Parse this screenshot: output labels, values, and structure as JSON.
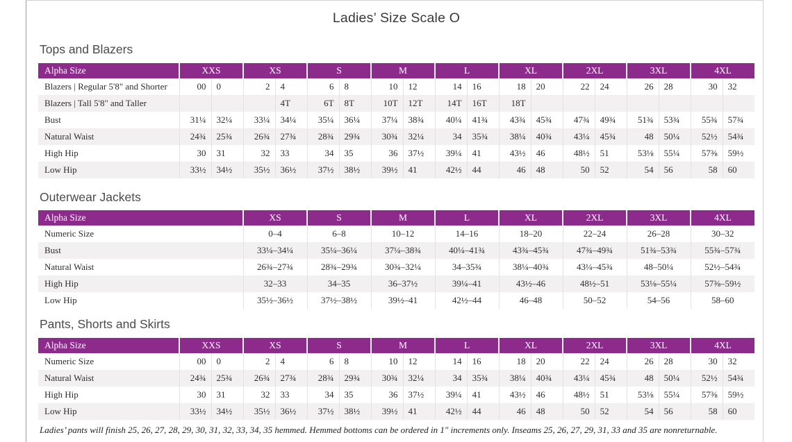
{
  "page": {
    "title": "Ladies’ Size Scale O",
    "footnote": "Ladies’ pants will finish 25, 26, 27, 28, 29, 30, 31, 32, 33, 34, 35 hemmed. Hemmed bottoms can be ordered in 1\" increments only. Inseams 25, 26, 27, 29, 31, 33 and 35 are nonreturnable."
  },
  "colors": {
    "header_bg": "#8C2B8C",
    "header_text": "#FFFFFF",
    "stripe": "#F2F0F1",
    "body_text": "#2E2C2D",
    "heading_text": "#4C4A4B"
  },
  "tables": [
    {
      "id": "tops-and-blazers",
      "section_title": "Tops and Blazers",
      "type": "double",
      "label_header": "Alpha Size",
      "size_headers": [
        "XXS",
        "XS",
        "S",
        "M",
        "L",
        "XL",
        "2XL",
        "3XL",
        "4XL"
      ],
      "rows": [
        {
          "label": "Blazers | Regular 5'8\" and Shorter",
          "values": [
            "00",
            "0",
            "2",
            "4",
            "6",
            "8",
            "10",
            "12",
            "14",
            "16",
            "18",
            "20",
            "22",
            "24",
            "26",
            "28",
            "30",
            "32"
          ]
        },
        {
          "label": "Blazers | Tall 5'8\" and Taller",
          "values": [
            "",
            "",
            "",
            "4T",
            "6T",
            "8T",
            "10T",
            "12T",
            "14T",
            "16T",
            "18T",
            "",
            "",
            "",
            "",
            "",
            "",
            ""
          ]
        },
        {
          "label": "Bust",
          "values": [
            "31¼",
            "32¼",
            "33¼",
            "34¼",
            "35¼",
            "36¼",
            "37¼",
            "38¾",
            "40¼",
            "41¾",
            "43¾",
            "45¾",
            "47¾",
            "49¾",
            "51¾",
            "53¾",
            "55¾",
            "57¾"
          ]
        },
        {
          "label": "Natural Waist",
          "values": [
            "24¾",
            "25¾",
            "26¾",
            "27¾",
            "28¾",
            "29¾",
            "30¾",
            "32¼",
            "34",
            "35¾",
            "38¼",
            "40¾",
            "43¼",
            "45¾",
            "48",
            "50¼",
            "52½",
            "54¾"
          ]
        },
        {
          "label": "High Hip",
          "values": [
            "30",
            "31",
            "32",
            "33",
            "34",
            "35",
            "36",
            "37½",
            "39¼",
            "41",
            "43½",
            "46",
            "48½",
            "51",
            "53⅛",
            "55¼",
            "57⅜",
            "59½"
          ]
        },
        {
          "label": "Low Hip",
          "values": [
            "33½",
            "34½",
            "35½",
            "36½",
            "37½",
            "38½",
            "39½",
            "41",
            "42½",
            "44",
            "46",
            "48",
            "50",
            "52",
            "54",
            "56",
            "58",
            "60"
          ]
        }
      ]
    },
    {
      "id": "outerwear-jackets",
      "section_title": "Outerwear Jackets",
      "type": "single",
      "label_header": "Alpha Size",
      "size_headers": [
        "XS",
        "S",
        "M",
        "L",
        "XL",
        "2XL",
        "3XL",
        "4XL"
      ],
      "rows": [
        {
          "label": "Numeric Size",
          "values": [
            "0–4",
            "6–8",
            "10–12",
            "14–16",
            "18–20",
            "22–24",
            "26–28",
            "30–32"
          ]
        },
        {
          "label": "Bust",
          "values": [
            "33¼–34¼",
            "35¼–36¼",
            "37¼–38¾",
            "40¼–41¾",
            "43¾–45¾",
            "47¾–49¾",
            "51¾–53¾",
            "55¾–57¾"
          ]
        },
        {
          "label": "Natural Waist",
          "values": [
            "26¾–27¾",
            "28¾–29¾",
            "30¾–32¼",
            "34–35¾",
            "38¼–40¾",
            "43¼–45¾",
            "48–50¼",
            "52½–54¾"
          ]
        },
        {
          "label": "High Hip",
          "values": [
            "32–33",
            "34–35",
            "36–37½",
            "39¼–41",
            "43½–46",
            "48½–51",
            "53⅛–55¼",
            "57⅜–59½"
          ]
        },
        {
          "label": "Low Hip",
          "values": [
            "35½–36½",
            "37½–38½",
            "39½–41",
            "42½–44",
            "46–48",
            "50–52",
            "54–56",
            "58–60"
          ]
        }
      ]
    },
    {
      "id": "pants-shorts-and-skirts",
      "section_title": "Pants, Shorts and Skirts",
      "type": "double",
      "label_header": "Alpha Size",
      "size_headers": [
        "XXS",
        "XS",
        "S",
        "M",
        "L",
        "XL",
        "2XL",
        "3XL",
        "4XL"
      ],
      "rows": [
        {
          "label": "Numeric Size",
          "values": [
            "00",
            "0",
            "2",
            "4",
            "6",
            "8",
            "10",
            "12",
            "14",
            "16",
            "18",
            "20",
            "22",
            "24",
            "26",
            "28",
            "30",
            "32"
          ]
        },
        {
          "label": "Natural Waist",
          "values": [
            "24¾",
            "25¾",
            "26¾",
            "27¾",
            "28¾",
            "29¾",
            "30¾",
            "32¼",
            "34",
            "35¾",
            "38¼",
            "40¾",
            "43¼",
            "45¾",
            "48",
            "50¼",
            "52½",
            "54¾"
          ]
        },
        {
          "label": "High Hip",
          "values": [
            "30",
            "31",
            "32",
            "33",
            "34",
            "35",
            "36",
            "37½",
            "39¼",
            "41",
            "43½",
            "46",
            "48½",
            "51",
            "53⅛",
            "55¼",
            "57⅜",
            "59½"
          ]
        },
        {
          "label": "Low Hip",
          "values": [
            "33½",
            "34½",
            "35½",
            "36½",
            "37½",
            "38½",
            "39½",
            "41",
            "42½",
            "44",
            "46",
            "48",
            "50",
            "52",
            "54",
            "56",
            "58",
            "60"
          ]
        }
      ]
    }
  ]
}
